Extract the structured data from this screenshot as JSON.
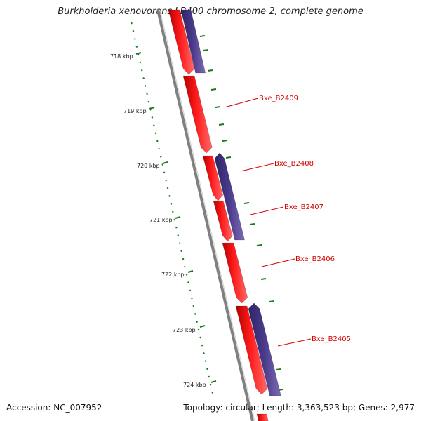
{
  "title": "Burkholderia xenovorans LB400 chromosome 2, complete genome",
  "footer": {
    "accession": "Accession: NC_007952",
    "stats": "Topology: circular; Length: 3,363,523 bp; Genes: 2,977"
  },
  "colors": {
    "forward_strand": "#ff0000",
    "reverse_strand": "#4b3b8c",
    "backbone": "#808080",
    "ticks": "#1a7a1a",
    "gene_label": "#d40000"
  },
  "ruler": {
    "labels": [
      "718 kbp",
      "719 kbp",
      "720 kbp",
      "721 kbp",
      "722 kbp",
      "723 kbp",
      "724 kbp"
    ]
  },
  "genes": [
    {
      "name": "Bxe_B2409"
    },
    {
      "name": "Bxe_B2408"
    },
    {
      "name": "Bxe_B2407"
    },
    {
      "name": "Bxe_B2406"
    },
    {
      "name": "Bxe_B2405"
    }
  ]
}
